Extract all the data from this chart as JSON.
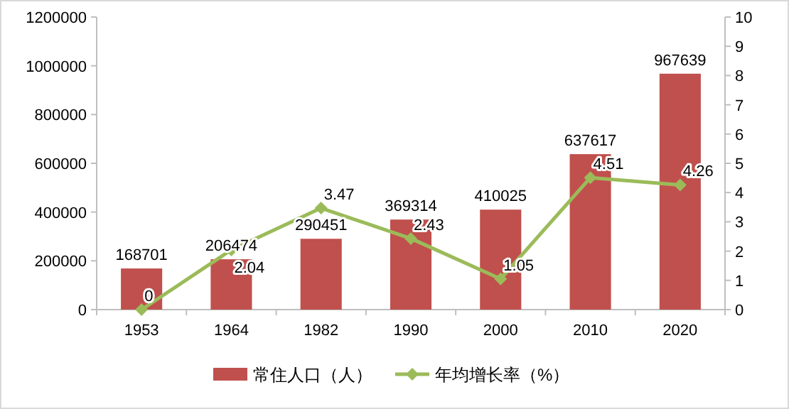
{
  "chart_data": {
    "type": "bar",
    "categories": [
      "1953",
      "1964",
      "1982",
      "1990",
      "2000",
      "2010",
      "2020"
    ],
    "series": [
      {
        "name": "常住人口（人）",
        "color": "#c0504d",
        "values": [
          168701,
          206474,
          290451,
          369314,
          410025,
          637617,
          967639
        ]
      },
      {
        "name": "年均增长率（%）",
        "type": "line",
        "axis": "y2",
        "color": "#9bbb59",
        "marker": "diamond",
        "values": [
          0,
          2.04,
          3.47,
          2.43,
          1.05,
          4.51,
          4.26
        ]
      }
    ],
    "ylim": [
      0,
      1200000
    ],
    "yticks": [
      0,
      200000,
      400000,
      600000,
      800000,
      1000000,
      1200000
    ],
    "y2lim": [
      0,
      10
    ],
    "y2ticks": [
      0,
      1,
      2,
      3,
      4,
      5,
      6,
      7,
      8,
      9,
      10
    ],
    "data_labels": true,
    "legend": "bottom",
    "grid": false
  }
}
